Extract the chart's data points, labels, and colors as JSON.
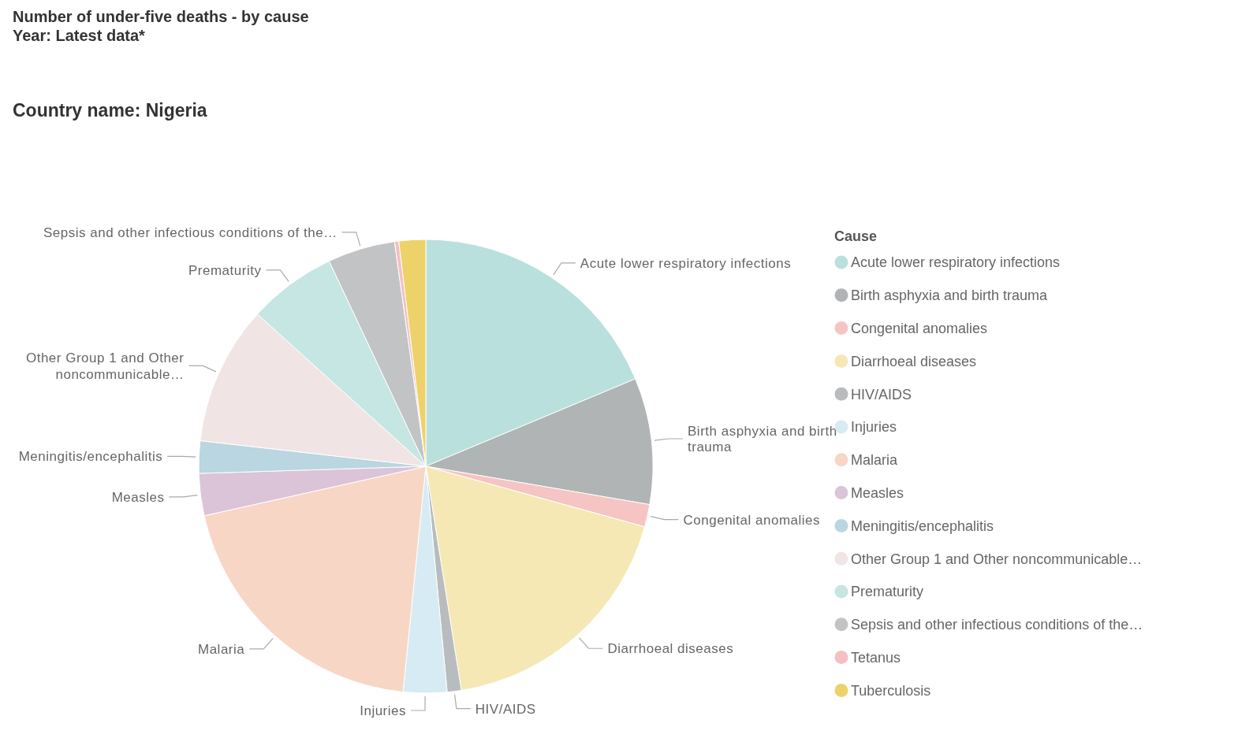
{
  "chart_data": {
    "type": "pie",
    "title": "Number of under-five deaths - by cause",
    "subtitle": "Year: Latest data*",
    "annotations": [
      "Country name: Nigeria"
    ],
    "legend_title": "Cause",
    "legend": "right",
    "categories": [
      "Acute lower respiratory infections",
      "Birth asphyxia and birth trauma",
      "Congenital anomalies",
      "Diarrhoeal diseases",
      "HIV/AIDS",
      "Injuries",
      "Malaria",
      "Measles",
      "Meningitis/encephalitis",
      "Other Group 1 and Other noncommunicable…",
      "Prematurity",
      "Sepsis and other infectious conditions of the…",
      "Tetanus",
      "Tuberculosis"
    ],
    "values": [
      18.7,
      9.0,
      1.6,
      18.2,
      1.0,
      3.1,
      19.9,
      3.0,
      2.3,
      9.9,
      6.3,
      4.8,
      0.3,
      1.9
    ],
    "colors": [
      "#b9e0dc",
      "#b0b4b5",
      "#f5c4c3",
      "#f5e8b4",
      "#b8bcbe",
      "#d6ebf3",
      "#f7d6c6",
      "#dbc4d7",
      "#b9d6e1",
      "#f0e4e4",
      "#c5e6e3",
      "#c2c3c4",
      "#f4c0c4",
      "#edd26a"
    ]
  }
}
